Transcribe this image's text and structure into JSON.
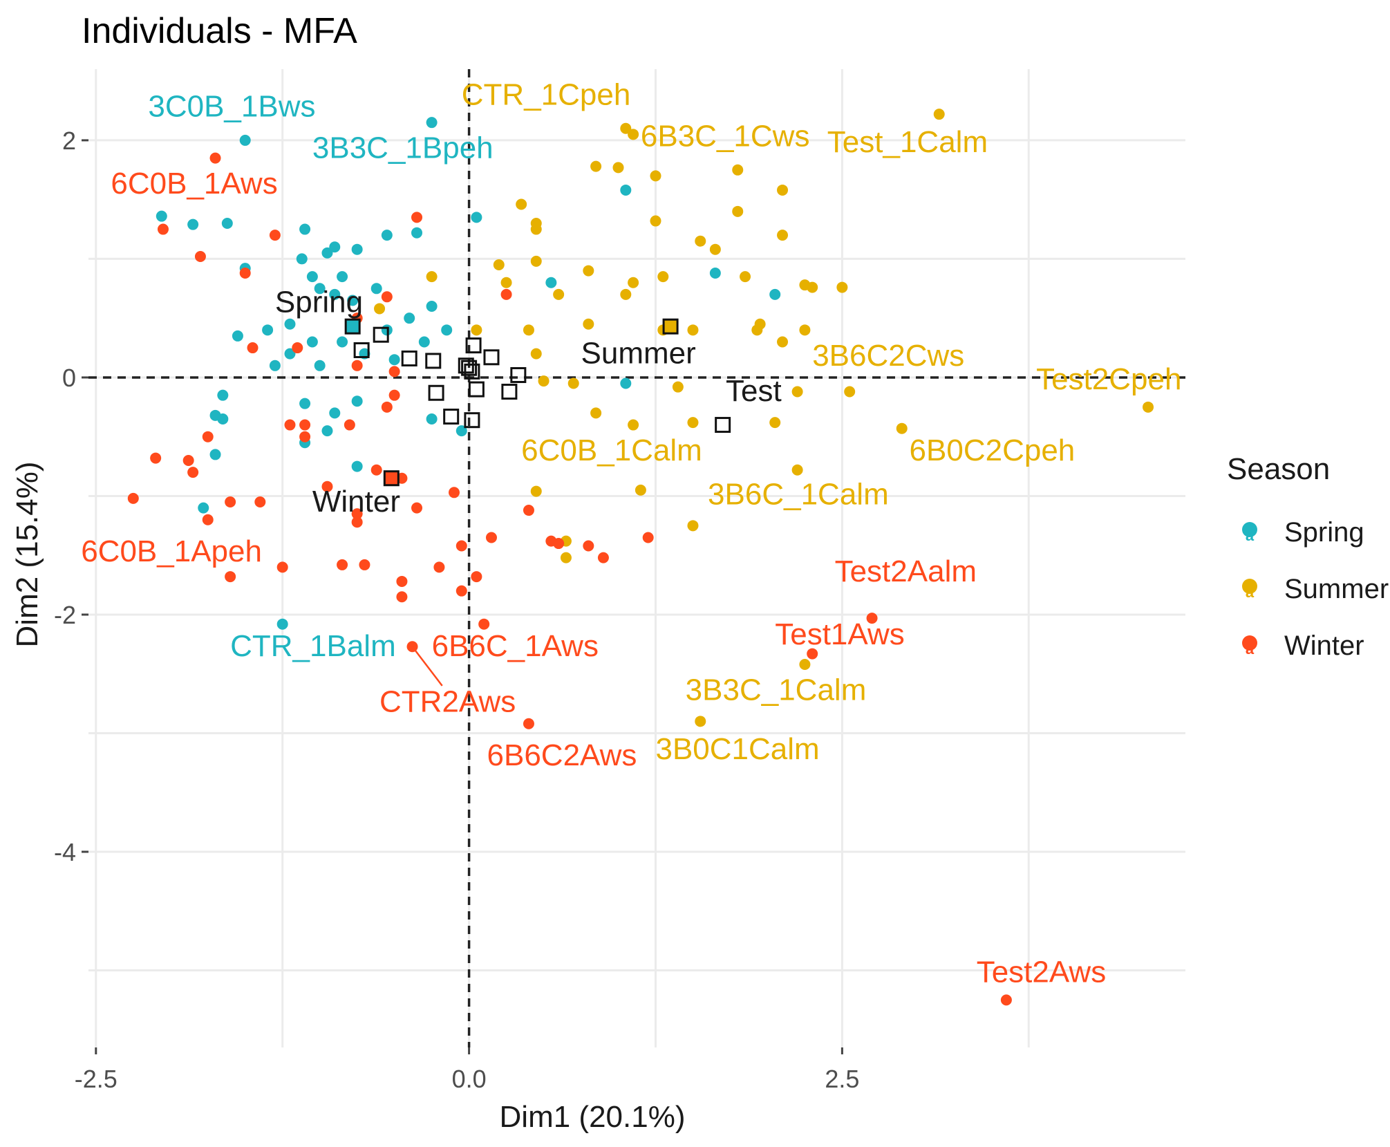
{
  "chart_data": {
    "type": "scatter",
    "title": "Individuals - MFA",
    "xlabel": "Dim1 (20.1%)",
    "ylabel": "Dim2 (15.4%)",
    "xlim": [
      -2.55,
      4.8
    ],
    "ylim": [
      -5.65,
      2.6
    ],
    "xticks": [
      -2.5,
      0.0,
      2.5
    ],
    "xtick_labels": [
      "-2.5",
      "0.0",
      "2.5"
    ],
    "yticks": [
      2,
      0,
      -2,
      -4
    ],
    "ytick_labels": [
      "2",
      "0",
      "-2",
      "-4"
    ],
    "grid": true,
    "reference_lines": {
      "x": 0,
      "y": 0,
      "style": "dashed"
    },
    "legend": {
      "title": "Season",
      "placement": "right",
      "entries": [
        {
          "label": "Spring",
          "color": "#1fb5c1",
          "marker": "a"
        },
        {
          "label": "Summer",
          "color": "#e6b000",
          "marker": "a"
        },
        {
          "label": "Winter",
          "color": "#ff4a1c",
          "marker": "a"
        }
      ]
    },
    "series": [
      {
        "name": "Spring",
        "color": "#1fb5c1",
        "points": [
          [
            -1.5,
            2.0
          ],
          [
            -2.06,
            1.36
          ],
          [
            -1.85,
            1.29
          ],
          [
            -1.62,
            1.3
          ],
          [
            -1.5,
            0.92
          ],
          [
            -1.1,
            1.25
          ],
          [
            -0.9,
            1.1
          ],
          [
            -0.75,
            1.08
          ],
          [
            -0.55,
            1.2
          ],
          [
            -0.35,
            1.22
          ],
          [
            -1.12,
            1.0
          ],
          [
            -0.95,
            1.05
          ],
          [
            -0.85,
            0.85
          ],
          [
            -1.05,
            0.85
          ],
          [
            -1.0,
            0.75
          ],
          [
            -0.9,
            0.7
          ],
          [
            -0.78,
            0.65
          ],
          [
            -0.62,
            0.75
          ],
          [
            -0.78,
            0.45
          ],
          [
            -1.2,
            0.45
          ],
          [
            -1.05,
            0.3
          ],
          [
            -0.85,
            0.3
          ],
          [
            -1.55,
            0.35
          ],
          [
            -1.35,
            0.4
          ],
          [
            -1.2,
            0.2
          ],
          [
            -1.0,
            0.1
          ],
          [
            -1.3,
            0.1
          ],
          [
            -0.7,
            0.2
          ],
          [
            -0.5,
            0.15
          ],
          [
            -0.55,
            0.4
          ],
          [
            -0.3,
            0.3
          ],
          [
            -0.25,
            0.6
          ],
          [
            -0.4,
            0.5
          ],
          [
            -0.15,
            0.4
          ],
          [
            -1.65,
            -0.15
          ],
          [
            -1.7,
            -0.32
          ],
          [
            -1.65,
            -0.35
          ],
          [
            -1.7,
            -0.65
          ],
          [
            -1.78,
            -1.1
          ],
          [
            -1.1,
            -0.22
          ],
          [
            -0.9,
            -0.3
          ],
          [
            -0.75,
            -0.2
          ],
          [
            -1.1,
            -0.55
          ],
          [
            -0.95,
            -0.45
          ],
          [
            -0.75,
            -0.75
          ],
          [
            -0.25,
            -0.35
          ],
          [
            -0.05,
            -0.45
          ],
          [
            0.05,
            1.35
          ],
          [
            0.55,
            0.8
          ],
          [
            1.05,
            1.58
          ],
          [
            1.65,
            0.88
          ],
          [
            2.05,
            0.7
          ],
          [
            1.05,
            -0.05
          ],
          [
            -1.25,
            -2.08
          ],
          [
            -0.25,
            2.15
          ]
        ]
      },
      {
        "name": "Summer",
        "color": "#e6b000",
        "points": [
          [
            1.05,
            2.1
          ],
          [
            1.1,
            2.05
          ],
          [
            3.15,
            2.22
          ],
          [
            0.85,
            1.78
          ],
          [
            1.0,
            1.77
          ],
          [
            1.25,
            1.7
          ],
          [
            1.8,
            1.75
          ],
          [
            2.1,
            1.58
          ],
          [
            0.35,
            1.46
          ],
          [
            0.45,
            1.3
          ],
          [
            0.45,
            1.25
          ],
          [
            1.25,
            1.32
          ],
          [
            1.55,
            1.15
          ],
          [
            1.65,
            1.08
          ],
          [
            1.8,
            1.4
          ],
          [
            2.1,
            1.2
          ],
          [
            0.2,
            0.95
          ],
          [
            0.45,
            0.98
          ],
          [
            0.8,
            0.9
          ],
          [
            0.25,
            0.8
          ],
          [
            0.6,
            0.7
          ],
          [
            1.1,
            0.8
          ],
          [
            1.05,
            0.7
          ],
          [
            1.3,
            0.85
          ],
          [
            1.85,
            0.85
          ],
          [
            2.25,
            0.78
          ],
          [
            2.3,
            0.76
          ],
          [
            2.5,
            0.76
          ],
          [
            -0.25,
            0.85
          ],
          [
            -0.6,
            0.58
          ],
          [
            0.05,
            0.4
          ],
          [
            0.4,
            0.4
          ],
          [
            0.8,
            0.45
          ],
          [
            1.3,
            0.4
          ],
          [
            1.5,
            0.4
          ],
          [
            1.95,
            0.45
          ],
          [
            1.93,
            0.4
          ],
          [
            2.1,
            0.3
          ],
          [
            2.25,
            0.4
          ],
          [
            0.45,
            0.2
          ],
          [
            0.5,
            -0.03
          ],
          [
            0.7,
            -0.05
          ],
          [
            1.4,
            -0.08
          ],
          [
            2.2,
            -0.12
          ],
          [
            2.55,
            -0.12
          ],
          [
            0.85,
            -0.3
          ],
          [
            1.1,
            -0.4
          ],
          [
            1.5,
            -0.38
          ],
          [
            2.05,
            -0.38
          ],
          [
            2.9,
            -0.43
          ],
          [
            4.55,
            -0.25
          ],
          [
            2.2,
            -0.78
          ],
          [
            1.15,
            -0.95
          ],
          [
            0.45,
            -0.96
          ],
          [
            1.5,
            -1.25
          ],
          [
            0.65,
            -1.38
          ],
          [
            0.65,
            -1.52
          ],
          [
            2.25,
            -2.42
          ],
          [
            1.55,
            -2.9
          ]
        ]
      },
      {
        "name": "Winter",
        "color": "#ff4a1c",
        "points": [
          [
            -1.7,
            1.85
          ],
          [
            -2.05,
            1.25
          ],
          [
            -1.3,
            1.2
          ],
          [
            -0.35,
            1.35
          ],
          [
            -1.8,
            1.02
          ],
          [
            -1.5,
            0.88
          ],
          [
            -0.55,
            0.68
          ],
          [
            -0.75,
            0.5
          ],
          [
            -1.45,
            0.25
          ],
          [
            -1.15,
            0.25
          ],
          [
            -0.75,
            0.1
          ],
          [
            -0.5,
            0.05
          ],
          [
            0.25,
            0.7
          ],
          [
            -0.5,
            -0.15
          ],
          [
            -0.55,
            -0.25
          ],
          [
            -1.1,
            -0.4
          ],
          [
            -1.2,
            -0.4
          ],
          [
            -1.1,
            -0.5
          ],
          [
            -0.8,
            -0.4
          ],
          [
            -1.75,
            -0.5
          ],
          [
            -2.1,
            -0.68
          ],
          [
            -1.88,
            -0.7
          ],
          [
            -1.85,
            -0.8
          ],
          [
            -2.25,
            -1.02
          ],
          [
            -1.75,
            -1.2
          ],
          [
            -1.6,
            -1.05
          ],
          [
            -1.4,
            -1.05
          ],
          [
            -0.95,
            -0.92
          ],
          [
            -0.75,
            -1.15
          ],
          [
            -0.75,
            -1.22
          ],
          [
            -0.62,
            -0.78
          ],
          [
            -0.45,
            -0.85
          ],
          [
            -0.35,
            -1.1
          ],
          [
            -0.1,
            -0.97
          ],
          [
            0.4,
            -1.12
          ],
          [
            0.15,
            -1.35
          ],
          [
            -0.05,
            -1.42
          ],
          [
            0.55,
            -1.38
          ],
          [
            0.6,
            -1.4
          ],
          [
            0.8,
            -1.42
          ],
          [
            0.9,
            -1.52
          ],
          [
            1.2,
            -1.35
          ],
          [
            -1.6,
            -1.68
          ],
          [
            -1.25,
            -1.6
          ],
          [
            -0.85,
            -1.58
          ],
          [
            -0.7,
            -1.58
          ],
          [
            -0.45,
            -1.72
          ],
          [
            -0.45,
            -1.85
          ],
          [
            -0.2,
            -1.6
          ],
          [
            0.05,
            -1.68
          ],
          [
            -0.05,
            -1.8
          ],
          [
            0.1,
            -2.08
          ],
          [
            -0.38,
            -2.27
          ],
          [
            0.4,
            -2.92
          ],
          [
            2.7,
            -2.03
          ],
          [
            2.3,
            -2.33
          ],
          [
            3.6,
            -5.25
          ]
        ]
      }
    ],
    "point_labels": [
      {
        "text": "3C0B_1Bws",
        "x": -2.15,
        "y": 2.2,
        "color": "#1fb5c1"
      },
      {
        "text": "3B3C_1Bpeh",
        "x": -1.05,
        "y": 1.85,
        "color": "#1fb5c1"
      },
      {
        "text": "CTR_1Balm",
        "x": -1.6,
        "y": -2.35,
        "color": "#1fb5c1"
      },
      {
        "text": "6C0B_1Aws",
        "x": -2.4,
        "y": 1.55,
        "color": "#ff4a1c"
      },
      {
        "text": "6C0B_1Apeh",
        "x": -2.6,
        "y": -1.55,
        "color": "#ff4a1c"
      },
      {
        "text": "6B6C_1Aws",
        "x": -0.25,
        "y": -2.35,
        "color": "#ff4a1c"
      },
      {
        "text": "CTR2Aws",
        "x": -0.6,
        "y": -2.82,
        "color": "#ff4a1c"
      },
      {
        "text": "6B6C2Aws",
        "x": 0.12,
        "y": -3.27,
        "color": "#ff4a1c"
      },
      {
        "text": "Test2Aalm",
        "x": 2.45,
        "y": -1.72,
        "color": "#ff4a1c"
      },
      {
        "text": "Test1Aws",
        "x": 2.05,
        "y": -2.25,
        "color": "#ff4a1c"
      },
      {
        "text": "Test2Aws",
        "x": 3.4,
        "y": -5.1,
        "color": "#ff4a1c"
      },
      {
        "text": "CTR_1Cpeh",
        "x": -0.05,
        "y": 2.3,
        "color": "#e6b000"
      },
      {
        "text": "6B3C_1Cws",
        "x": 1.15,
        "y": 1.95,
        "color": "#e6b000"
      },
      {
        "text": "Test_1Calm",
        "x": 2.4,
        "y": 1.9,
        "color": "#e6b000"
      },
      {
        "text": "3B6C2Cws",
        "x": 2.3,
        "y": 0.1,
        "color": "#e6b000"
      },
      {
        "text": "Test2Cpeh",
        "x": 3.8,
        "y": -0.1,
        "color": "#e6b000"
      },
      {
        "text": "6C0B_1Calm",
        "x": 0.35,
        "y": -0.7,
        "color": "#e6b000"
      },
      {
        "text": "6B0C2Cpeh",
        "x": 2.95,
        "y": -0.7,
        "color": "#e6b000"
      },
      {
        "text": "3B6C_1Calm",
        "x": 1.6,
        "y": -1.07,
        "color": "#e6b000"
      },
      {
        "text": "3B3C_1Calm",
        "x": 1.45,
        "y": -2.72,
        "color": "#e6b000"
      },
      {
        "text": "3B0C1Calm",
        "x": 1.25,
        "y": -3.22,
        "color": "#e6b000"
      }
    ],
    "label_leader_lines": [
      {
        "from": [
          -0.38,
          -2.27
        ],
        "to": [
          -0.18,
          -2.6
        ]
      }
    ],
    "group_centers": [
      {
        "name": "Spring",
        "x": -0.78,
        "y": 0.43,
        "fill": "#1fb5c1"
      },
      {
        "name": "Summer",
        "x": 1.35,
        "y": 0.43,
        "fill": "#e6b000"
      },
      {
        "name": "Winter",
        "x": -0.52,
        "y": -0.85,
        "fill": "#ff4a1c"
      }
    ],
    "center_labels": [
      {
        "text": "Spring",
        "x": -1.3,
        "y": 0.55
      },
      {
        "text": "Summer",
        "x": 0.75,
        "y": 0.12
      },
      {
        "text": "Test",
        "x": 1.72,
        "y": -0.2
      },
      {
        "text": "Winter",
        "x": -1.05,
        "y": -1.13
      }
    ],
    "partial_points": [
      [
        -0.72,
        0.23
      ],
      [
        -0.59,
        0.36
      ],
      [
        -0.4,
        0.16
      ],
      [
        -0.24,
        0.14
      ],
      [
        -0.22,
        -0.13
      ],
      [
        -0.12,
        -0.33
      ],
      [
        -0.02,
        0.1
      ],
      [
        0.0,
        0.08
      ],
      [
        0.02,
        0.05
      ],
      [
        0.03,
        0.27
      ],
      [
        0.05,
        -0.1
      ],
      [
        0.15,
        0.17
      ],
      [
        0.27,
        -0.12
      ],
      [
        0.33,
        0.02
      ],
      [
        0.02,
        -0.36
      ],
      [
        1.7,
        -0.4
      ]
    ]
  }
}
